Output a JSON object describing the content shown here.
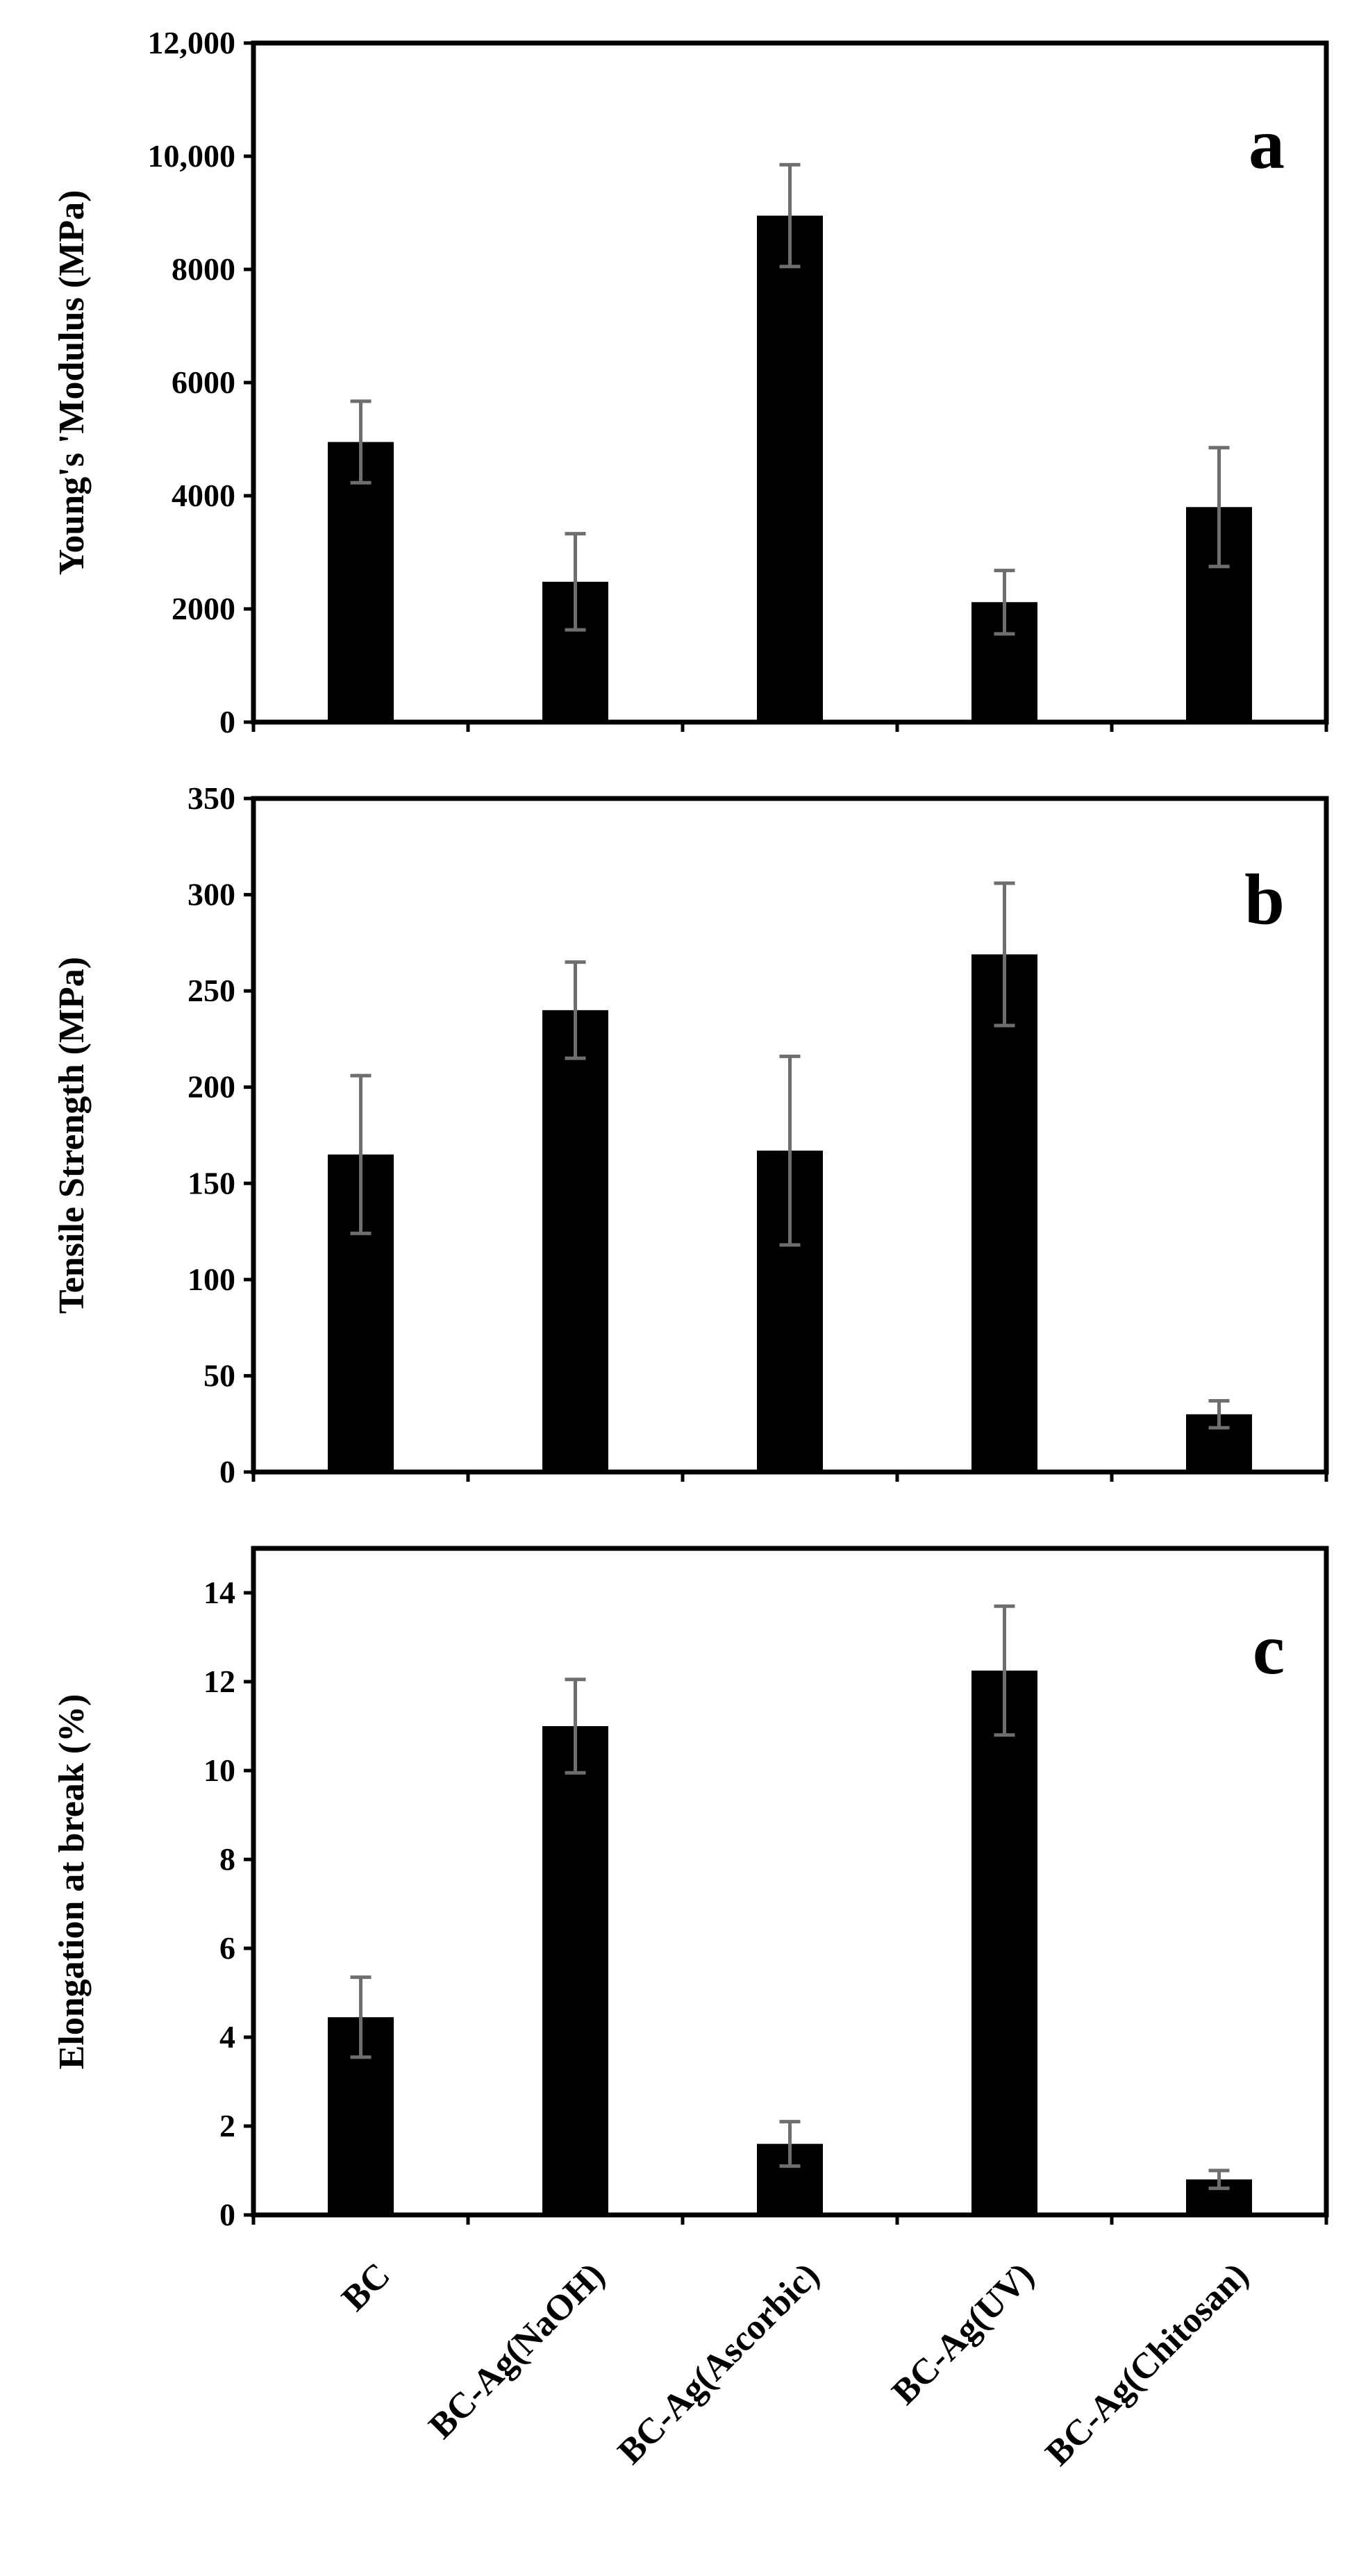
{
  "figure": {
    "categories": [
      "BC",
      "BC-Ag(NaOH)",
      "BC-Ag(Ascorbic)",
      "BC-Ag(UV)",
      "BC-Ag(Chitosan)"
    ]
  },
  "colors": {
    "bar": "#000000",
    "error_bar": "#6e6e6e",
    "axis": "#000000",
    "background": "#ffffff"
  },
  "chart_data": [
    {
      "id": "a",
      "type": "bar",
      "panel_label": "a",
      "ylabel": "Young's 'Modulus (MPa)",
      "xlabel": "",
      "ylim": [
        0,
        12000
      ],
      "yticks": [
        0,
        2000,
        4000,
        6000,
        8000,
        10000,
        12000
      ],
      "ytick_labels": [
        "0",
        "2000",
        "4000",
        "6000",
        "8000",
        "10,000",
        "12,000"
      ],
      "categories": [
        "BC",
        "BC-Ag(NaOH)",
        "BC-Ag(Ascorbic)",
        "BC-Ag(UV)",
        "BC-Ag(Chitosan)"
      ],
      "values": [
        4950,
        2480,
        8950,
        2120,
        3800
      ],
      "errors": [
        720,
        850,
        900,
        560,
        1050
      ],
      "show_category_labels": false
    },
    {
      "id": "b",
      "type": "bar",
      "panel_label": "b",
      "ylabel": "Tensile Strength (MPa)",
      "xlabel": "",
      "ylim": [
        0,
        350
      ],
      "yticks": [
        0,
        50,
        100,
        150,
        200,
        250,
        300,
        350
      ],
      "ytick_labels": [
        "0",
        "50",
        "100",
        "150",
        "200",
        "250",
        "300",
        "350"
      ],
      "categories": [
        "BC",
        "BC-Ag(NaOH)",
        "BC-Ag(Ascorbic)",
        "BC-Ag(UV)",
        "BC-Ag(Chitosan)"
      ],
      "values": [
        165,
        240,
        167,
        269,
        30
      ],
      "errors": [
        41,
        25,
        49,
        37,
        7
      ],
      "show_category_labels": false
    },
    {
      "id": "c",
      "type": "bar",
      "panel_label": "c",
      "ylabel": "Elongation at break (%)",
      "xlabel": "",
      "ylim": [
        0,
        15
      ],
      "yticks": [
        0,
        2,
        4,
        6,
        8,
        10,
        12,
        14
      ],
      "ytick_labels": [
        "0",
        "2",
        "4",
        "6",
        "8",
        "10",
        "12",
        "14"
      ],
      "categories": [
        "BC",
        "BC-Ag(NaOH)",
        "BC-Ag(Ascorbic)",
        "BC-Ag(UV)",
        "BC-Ag(Chitosan)"
      ],
      "values": [
        4.45,
        11.0,
        1.6,
        12.25,
        0.8
      ],
      "errors": [
        0.9,
        1.05,
        0.5,
        1.45,
        0.2
      ],
      "show_category_labels": true
    }
  ]
}
